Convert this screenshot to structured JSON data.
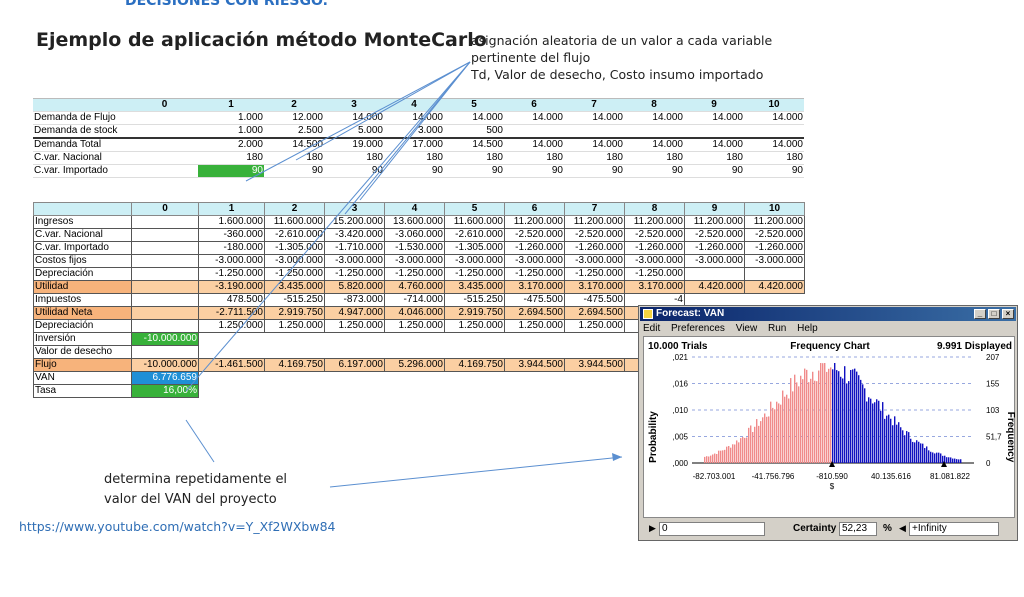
{
  "slide": {
    "top_heading": "DECISIONES CON RIESGO.",
    "title": "Ejemplo de aplicación método MonteCarlo",
    "note_top": [
      "asignación aleatoria de un valor a cada variable",
      "pertinente del flujo",
      "Td, Valor de desecho, Costo insumo importado"
    ],
    "note_bottom": [
      "determina repetidamente el",
      "valor del VAN del proyecto"
    ],
    "url": "https://www.youtube.com/watch?v=Y_Xf2WXbw84"
  },
  "table1": {
    "header": [
      "",
      "0",
      "1",
      "2",
      "3",
      "4",
      "5",
      "6",
      "7",
      "8",
      "9",
      "10"
    ],
    "rows": [
      [
        "Demanda de Flujo",
        "",
        "1.000",
        "12.000",
        "14.000",
        "14.000",
        "14.000",
        "14.000",
        "14.000",
        "14.000",
        "14.000",
        "14.000"
      ],
      [
        "Demanda de stock",
        "",
        "1.000",
        "2.500",
        "5.000",
        "3.000",
        "500",
        "",
        "",
        "",
        "",
        ""
      ],
      [
        "Demanda Total",
        "",
        "2.000",
        "14.500",
        "19.000",
        "17.000",
        "14.500",
        "14.000",
        "14.000",
        "14.000",
        "14.000",
        "14.000"
      ],
      [
        "C.var. Nacional",
        "",
        "180",
        "180",
        "180",
        "180",
        "180",
        "180",
        "180",
        "180",
        "180",
        "180"
      ],
      [
        "C.var. Importado",
        "",
        "90",
        "90",
        "90",
        "90",
        "90",
        "90",
        "90",
        "90",
        "90",
        "90"
      ]
    ]
  },
  "table2": {
    "header": [
      "",
      "0",
      "1",
      "2",
      "3",
      "4",
      "5",
      "6",
      "7",
      "8",
      "9",
      "10"
    ],
    "rows": [
      [
        "Ingresos",
        "",
        "1.600.000",
        "11.600.000",
        "15.200.000",
        "13.600.000",
        "11.600.000",
        "11.200.000",
        "11.200.000",
        "11.200.000",
        "11.200.000",
        "11.200.000"
      ],
      [
        "C.var. Nacional",
        "",
        "-360.000",
        "-2.610.000",
        "-3.420.000",
        "-3.060.000",
        "-2.610.000",
        "-2.520.000",
        "-2.520.000",
        "-2.520.000",
        "-2.520.000",
        "-2.520.000"
      ],
      [
        "C.var. Importado",
        "",
        "-180.000",
        "-1.305.000",
        "-1.710.000",
        "-1.530.000",
        "-1.305.000",
        "-1.260.000",
        "-1.260.000",
        "-1.260.000",
        "-1.260.000",
        "-1.260.000"
      ],
      [
        "Costos fijos",
        "",
        "-3.000.000",
        "-3.000.000",
        "-3.000.000",
        "-3.000.000",
        "-3.000.000",
        "-3.000.000",
        "-3.000.000",
        "-3.000.000",
        "-3.000.000",
        "-3.000.000"
      ],
      [
        "Depreciación",
        "",
        "-1.250.000",
        "-1.250.000",
        "-1.250.000",
        "-1.250.000",
        "-1.250.000",
        "-1.250.000",
        "-1.250.000",
        "-1.250.000",
        "",
        ""
      ],
      [
        "Utilidad",
        "",
        "-3.190.000",
        "3.435.000",
        "5.820.000",
        "4.760.000",
        "3.435.000",
        "3.170.000",
        "3.170.000",
        "3.170.000",
        "4.420.000",
        "4.420.000"
      ],
      [
        "Impuestos",
        "",
        "478.500",
        "-515.250",
        "-873.000",
        "-714.000",
        "-515.250",
        "-475.500",
        "-475.500",
        "-4",
        "",
        ""
      ],
      [
        "Utilidad Neta",
        "",
        "-2.711.500",
        "2.919.750",
        "4.947.000",
        "4.046.000",
        "2.919.750",
        "2.694.500",
        "2.694.500",
        "2.69",
        "",
        ""
      ],
      [
        "Depreciación",
        "",
        "1.250.000",
        "1.250.000",
        "1.250.000",
        "1.250.000",
        "1.250.000",
        "1.250.000",
        "1.250.000",
        "1.2",
        "",
        ""
      ],
      [
        "Inversión",
        "-10.000.000",
        "",
        "",
        "",
        "",
        "",
        "",
        "",
        "",
        "",
        ""
      ],
      [
        "Valor de desecho",
        "",
        "",
        "",
        "",
        "",
        "",
        "",
        "",
        "",
        "",
        ""
      ],
      [
        "Flujo",
        "-10.000.000",
        "-1.461.500",
        "4.169.750",
        "6.197.000",
        "5.296.000",
        "4.169.750",
        "3.944.500",
        "3.944.500",
        "3.9",
        "",
        ""
      ],
      [
        "VAN",
        "6.776.659",
        "",
        "",
        "",
        "",
        "",
        "",
        "",
        "",
        "",
        ""
      ],
      [
        "Tasa",
        "16,00%",
        "",
        "",
        "",
        "",
        "",
        "",
        "",
        "",
        "",
        ""
      ]
    ]
  },
  "forecast": {
    "window_title": "Forecast: VAN",
    "menu": [
      "Edit",
      "Preferences",
      "View",
      "Run",
      "Help"
    ],
    "trials": "10.000 Trials",
    "chart_title": "Frequency Chart",
    "displayed": "9.991 Displayed",
    "y_left_label": "Probability",
    "y_right_label": "Frequency",
    "y_left_ticks": [
      ",021",
      ",016",
      ",010",
      ",005",
      ",000"
    ],
    "y_right_ticks": [
      "207",
      "155",
      "103",
      "51,7",
      "0"
    ],
    "x_ticks": [
      "-82.703.001",
      "-41.756.796",
      "-810.590",
      "40.135.616",
      "81.081.822"
    ],
    "x_unit": "$",
    "left_field": "0",
    "certainty_label": "Certainty",
    "certainty_value": "52,23",
    "percent": "%",
    "right_field": "+Infinity",
    "colors": {
      "left": "#f08a8a",
      "right": "#1010c0"
    }
  }
}
